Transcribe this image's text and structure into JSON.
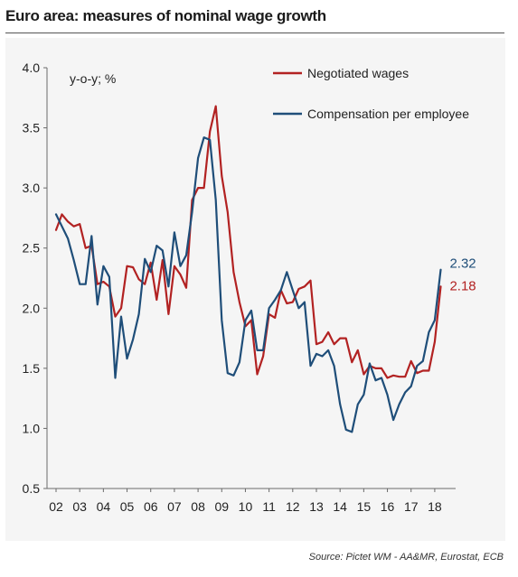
{
  "title": "Euro area: measures of nominal wage growth",
  "source": "Source: Pictet WM - AA&MR, Eurostat, ECB",
  "colors": {
    "negotiated": "#b22222",
    "compensation": "#1f4e79",
    "axis": "#6b6b6b",
    "panel": "#f5f5f5"
  },
  "chart_data": {
    "type": "line",
    "title": "Euro area: measures of nominal wage growth",
    "ylabel": "y-o-y; %",
    "xlabel": "",
    "ylim": [
      0.5,
      4.0
    ],
    "yticks": [
      0.5,
      1.0,
      1.5,
      2.0,
      2.5,
      3.0,
      3.5,
      4.0
    ],
    "ytick_labels": [
      "0.5",
      "1.0",
      "1.5",
      "2.0",
      "2.5",
      "3.0",
      "3.5",
      "4.0"
    ],
    "xlim": [
      2002.0,
      2018.5
    ],
    "xticks": [
      2002,
      2003,
      2004,
      2005,
      2006,
      2007,
      2008,
      2009,
      2010,
      2011,
      2012,
      2013,
      2014,
      2015,
      2016,
      2017,
      2018
    ],
    "xtick_labels": [
      "02",
      "03",
      "04",
      "05",
      "06",
      "07",
      "08",
      "09",
      "10",
      "11",
      "12",
      "13",
      "14",
      "15",
      "16",
      "17",
      "18"
    ],
    "grid": false,
    "legend": "top-right",
    "series": [
      {
        "name": "Negotiated wages",
        "end_label": "2.18",
        "x": [
          2002.0,
          2002.25,
          2002.5,
          2002.75,
          2003.0,
          2003.25,
          2003.5,
          2003.75,
          2004.0,
          2004.25,
          2004.5,
          2004.75,
          2005.0,
          2005.25,
          2005.5,
          2005.75,
          2006.0,
          2006.25,
          2006.5,
          2006.75,
          2007.0,
          2007.25,
          2007.5,
          2007.75,
          2008.0,
          2008.25,
          2008.5,
          2008.75,
          2009.0,
          2009.25,
          2009.5,
          2009.75,
          2010.0,
          2010.25,
          2010.5,
          2010.75,
          2011.0,
          2011.25,
          2011.5,
          2011.75,
          2012.0,
          2012.25,
          2012.5,
          2012.75,
          2013.0,
          2013.25,
          2013.5,
          2013.75,
          2014.0,
          2014.25,
          2014.5,
          2014.75,
          2015.0,
          2015.25,
          2015.5,
          2015.75,
          2016.0,
          2016.25,
          2016.5,
          2016.75,
          2017.0,
          2017.25,
          2017.5,
          2017.75,
          2018.0,
          2018.25
        ],
        "y": [
          2.65,
          2.78,
          2.72,
          2.68,
          2.7,
          2.5,
          2.52,
          2.2,
          2.22,
          2.18,
          1.93,
          2.0,
          2.35,
          2.34,
          2.24,
          2.2,
          2.38,
          2.07,
          2.4,
          1.95,
          2.35,
          2.28,
          2.17,
          2.9,
          3.0,
          3.0,
          3.47,
          3.68,
          3.1,
          2.8,
          2.3,
          2.05,
          1.85,
          1.9,
          1.45,
          1.6,
          1.95,
          1.92,
          2.15,
          2.04,
          2.05,
          2.16,
          2.18,
          2.23,
          1.7,
          1.72,
          1.8,
          1.7,
          1.75,
          1.75,
          1.55,
          1.65,
          1.45,
          1.52,
          1.5,
          1.5,
          1.42,
          1.44,
          1.43,
          1.43,
          1.56,
          1.46,
          1.48,
          1.48,
          1.72,
          2.18
        ]
      },
      {
        "name": "Compensation per employee",
        "end_label": "2.32",
        "x": [
          2002.0,
          2002.25,
          2002.5,
          2002.75,
          2003.0,
          2003.25,
          2003.5,
          2003.75,
          2004.0,
          2004.25,
          2004.5,
          2004.75,
          2005.0,
          2005.25,
          2005.5,
          2005.75,
          2006.0,
          2006.25,
          2006.5,
          2006.75,
          2007.0,
          2007.25,
          2007.5,
          2007.75,
          2008.0,
          2008.25,
          2008.5,
          2008.75,
          2009.0,
          2009.25,
          2009.5,
          2009.75,
          2010.0,
          2010.25,
          2010.5,
          2010.75,
          2011.0,
          2011.25,
          2011.5,
          2011.75,
          2012.0,
          2012.25,
          2012.5,
          2012.75,
          2013.0,
          2013.25,
          2013.5,
          2013.75,
          2014.0,
          2014.25,
          2014.5,
          2014.75,
          2015.0,
          2015.25,
          2015.5,
          2015.75,
          2016.0,
          2016.25,
          2016.5,
          2016.75,
          2017.0,
          2017.25,
          2017.5,
          2017.75,
          2018.0,
          2018.25
        ],
        "y": [
          2.78,
          2.68,
          2.58,
          2.4,
          2.2,
          2.2,
          2.6,
          2.03,
          2.35,
          2.26,
          1.42,
          1.93,
          1.58,
          1.74,
          1.95,
          2.41,
          2.3,
          2.52,
          2.48,
          2.18,
          2.63,
          2.35,
          2.44,
          2.8,
          3.25,
          3.42,
          3.4,
          2.9,
          1.9,
          1.46,
          1.44,
          1.55,
          1.9,
          1.98,
          1.65,
          1.65,
          2.0,
          2.07,
          2.15,
          2.3,
          2.15,
          2.0,
          2.05,
          1.52,
          1.62,
          1.6,
          1.65,
          1.52,
          1.2,
          0.99,
          0.97,
          1.2,
          1.28,
          1.54,
          1.4,
          1.42,
          1.28,
          1.07,
          1.2,
          1.3,
          1.35,
          1.52,
          1.56,
          1.8,
          1.9,
          2.32
        ]
      }
    ]
  }
}
